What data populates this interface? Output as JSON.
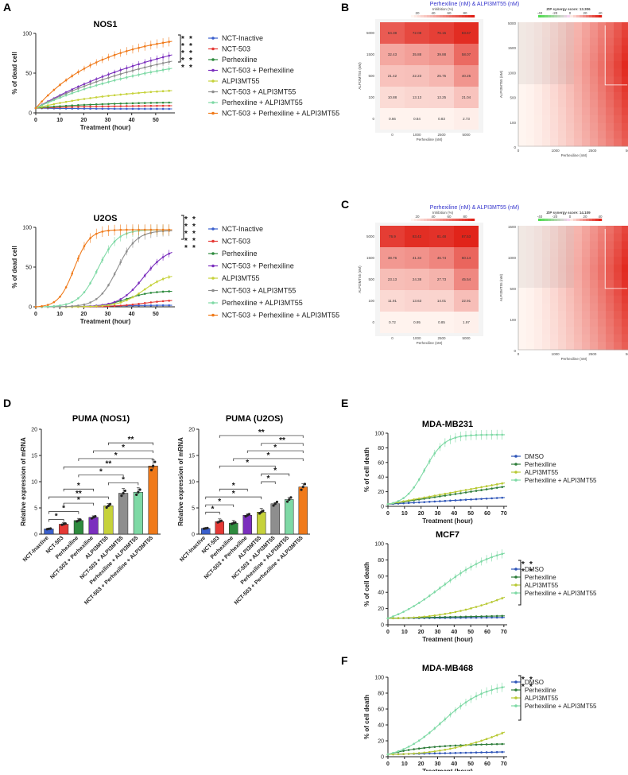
{
  "panels": {
    "A": "A",
    "B": "B",
    "C": "C",
    "D": "D",
    "E": "E",
    "F": "F"
  },
  "colors": {
    "nct_inactive": "#3a5fcd",
    "nct503": "#e53935",
    "perhexiline": "#2e8b3e",
    "nct_perh": "#7b2fbe",
    "alpi": "#c6d23b",
    "nct_alpi": "#8e8e8e",
    "perh_alpi": "#7ed9a5",
    "nct_perh_alpi": "#f07a1a",
    "dmso": "#2e55b8",
    "ef_perh": "#2e7d3a",
    "ef_alpi": "#b8c934",
    "ef_combo": "#7ed9a5"
  },
  "chart_data": [
    {
      "id": "A1",
      "type": "line",
      "title": "NOS1",
      "xlabel": "Treatment (hour)",
      "ylabel": "% of dead cell",
      "xlim": [
        0,
        58
      ],
      "ylim": [
        0,
        100
      ],
      "xticks": [
        "0",
        "10",
        "20",
        "30",
        "40",
        "50"
      ],
      "yticks": [
        "0",
        "50",
        "100"
      ],
      "significance": [
        "*",
        "*",
        "*",
        "*",
        "*",
        "*",
        "*",
        "*",
        "*",
        "*"
      ],
      "series": [
        {
          "name": "NCT-Inactive",
          "color": "nct_inactive",
          "start": 6,
          "end": 5,
          "tau": 20
        },
        {
          "name": "NCT-503",
          "color": "nct503",
          "start": 6,
          "end": 9,
          "tau": 30
        },
        {
          "name": "Perhexiline",
          "color": "perhexiline",
          "start": 6,
          "end": 13,
          "tau": 30
        },
        {
          "name": "NCT-503 + Perhexiline",
          "color": "nct_perh",
          "start": 6,
          "end": 73,
          "tau": 70
        },
        {
          "name": "ALPI3MT55",
          "color": "alpi",
          "start": 6,
          "end": 28,
          "tau": 40
        },
        {
          "name": "NCT-503 + ALPI3MT55",
          "color": "nct_alpi",
          "start": 6,
          "end": 65,
          "tau": 60
        },
        {
          "name": "Perhexiline + ALPI3MT55",
          "color": "perh_alpi",
          "start": 6,
          "end": 56,
          "tau": 55
        },
        {
          "name": "NCT-503 + Perhexiline + ALPI3MT55",
          "color": "nct_perh_alpi",
          "start": 6,
          "end": 90,
          "tau": 28
        }
      ]
    },
    {
      "id": "A2",
      "type": "line",
      "title": "U2OS",
      "xlabel": "Treatment (hour)",
      "ylabel": "% of dead cell",
      "xlim": [
        0,
        58
      ],
      "ylim": [
        0,
        100
      ],
      "xticks": [
        "0",
        "10",
        "20",
        "30",
        "40",
        "50"
      ],
      "yticks": [
        "0",
        "50",
        "100"
      ],
      "significance": [
        "*",
        "*",
        "*",
        "*",
        "*",
        "*",
        "*",
        "*",
        "*",
        "*"
      ],
      "series": [
        {
          "name": "NCT-Inactive",
          "color": "nct_inactive",
          "start": 0,
          "end": 2,
          "mid": 30,
          "k": 8
        },
        {
          "name": "NCT-503",
          "color": "nct503",
          "start": 0,
          "end": 9,
          "mid": 45,
          "k": 6
        },
        {
          "name": "Perhexiline",
          "color": "perhexiline",
          "start": 0,
          "end": 20,
          "mid": 38,
          "k": 5
        },
        {
          "name": "NCT-503 + Perhexiline",
          "color": "nct_perh",
          "start": 0,
          "end": 75,
          "mid": 45,
          "k": 5
        },
        {
          "name": "ALPI3MT55",
          "color": "alpi",
          "start": 0,
          "end": 42,
          "mid": 45,
          "k": 5
        },
        {
          "name": "NCT-503 + ALPI3MT55",
          "color": "nct_alpi",
          "start": 0,
          "end": 96,
          "mid": 34,
          "k": 4
        },
        {
          "name": "Perhexiline + ALPI3MT55",
          "color": "perh_alpi",
          "start": 0,
          "end": 97,
          "mid": 26,
          "k": 4
        },
        {
          "name": "NCT-503 + Perhexiline + ALPI3MT55",
          "color": "nct_perh_alpi",
          "start": 0,
          "end": 97,
          "mid": 16,
          "k": 3.2
        }
      ]
    },
    {
      "id": "B",
      "type": "heatmap",
      "subtitle": "Perhexiline (nM)  &  ALPI3MT55 (nM)",
      "legend_title": "Inhibition (%)",
      "legend_ticks": [
        "20",
        "40",
        "60",
        "80"
      ],
      "xlabel": "Perhexiline (nM)",
      "ylabel": "ALPI3MT55 (nM)",
      "xticks": [
        "0",
        "1000",
        "2500",
        "5000"
      ],
      "yticks": [
        "5000",
        "1500",
        "500",
        "100",
        "0"
      ],
      "values": [
        [
          "64.38",
          "72.08",
          "76.15",
          "83.67"
        ],
        [
          "32.43",
          "35.88",
          "39.88",
          "58.07"
        ],
        [
          "21.42",
          "22.23",
          "25.75",
          "40.25"
        ],
        [
          "10.88",
          "13.13",
          "13.25",
          "21.04"
        ],
        [
          "0.66",
          "0.84",
          "0.83",
          "2.73"
        ]
      ],
      "zip_title": "ZIP synergy score: 13.306",
      "zip_ticks": [
        "-40",
        "-20",
        "0",
        "20",
        "40"
      ],
      "zip_xticks": [
        "0",
        "1000",
        "2500",
        "5000"
      ],
      "zip_yticks": [
        "5000",
        "1500",
        "1000",
        "500",
        "100",
        "0"
      ],
      "zip_xlabel": "Perhexiline (nM)",
      "zip_ylabel": "ALPI3MT55 (nM)"
    },
    {
      "id": "C",
      "type": "heatmap",
      "subtitle": "Perhexiline (nM)  &  ALPI3MT55 (nM)",
      "legend_title": "Inhibition (%)",
      "legend_ticks": [
        "20",
        "40",
        "60",
        "80"
      ],
      "xlabel": "Perhexiline (nM)",
      "ylabel": "ALPI3MT55 (nM)",
      "xticks": [
        "0",
        "1000",
        "2500",
        "5000"
      ],
      "yticks": [
        "5000",
        "1500",
        "500",
        "100",
        "0"
      ],
      "values": [
        [
          "76.9",
          "83.42",
          "81.48",
          "87.53"
        ],
        [
          "38.76",
          "41.34",
          "46.74",
          "60.14"
        ],
        [
          "23.13",
          "24.38",
          "27.73",
          "45.54"
        ],
        [
          "11.91",
          "13.63",
          "14.01",
          "22.91"
        ],
        [
          "0.72",
          "0.95",
          "0.85",
          "1.97"
        ]
      ],
      "zip_title": "ZIP synergy score: 14.109",
      "zip_ticks": [
        "-40",
        "-20",
        "0",
        "20",
        "40"
      ],
      "zip_xticks": [
        "0",
        "1000",
        "2500",
        "5000"
      ],
      "zip_yticks": [
        "1500",
        "1000",
        "500",
        "100",
        "0"
      ],
      "zip_xlabel": "Perhexiline (nM)",
      "zip_ylabel": "ALPI3MT55 (nM)"
    },
    {
      "id": "D1",
      "type": "bar",
      "title": "PUMA (NOS1)",
      "ylabel": "Relative expression of mRNA",
      "ylim": [
        0,
        20
      ],
      "yticks": [
        "0",
        "5",
        "10",
        "15",
        "20"
      ],
      "categories": [
        "NCT-Inactive",
        "NCT-503",
        "Perhexiline",
        "NCT-503 + Perhexiline",
        "ALPI3MT55",
        "NCT-503 + ALPI3MT55",
        "Perhexiline + ALPI3MT55",
        "NCT-503 + Perhexiline + ALPI3MT55"
      ],
      "colors": [
        "nct_inactive",
        "nct503",
        "perhexiline",
        "nct_perh",
        "alpi",
        "nct_alpi",
        "perh_alpi",
        "nct_perh_alpi"
      ],
      "values": [
        1.0,
        1.9,
        2.6,
        3.2,
        5.4,
        7.8,
        8.0,
        13.0
      ],
      "errors": [
        0.15,
        0.3,
        0.4,
        0.3,
        0.4,
        0.9,
        0.9,
        1.2
      ],
      "brackets": [
        {
          "a": 0,
          "b": 1,
          "y": 2.8,
          "label": "*"
        },
        {
          "a": 0,
          "b": 2,
          "y": 4.3,
          "label": "*"
        },
        {
          "a": 1,
          "b": 3,
          "y": 5.9,
          "label": "*"
        },
        {
          "a": 0,
          "b": 4,
          "y": 7.1,
          "label": "**"
        },
        {
          "a": 1,
          "b": 3,
          "y": 8.6,
          "label": "*"
        },
        {
          "a": 4,
          "b": 6,
          "y": 9.8,
          "label": "*"
        },
        {
          "a": 2,
          "b": 5,
          "y": 11.3,
          "label": "*"
        },
        {
          "a": 1,
          "b": 7,
          "y": 12.8,
          "label": "**"
        },
        {
          "a": 2,
          "b": 7,
          "y": 14.4,
          "label": "*"
        },
        {
          "a": 3,
          "b": 7,
          "y": 15.9,
          "label": "*"
        },
        {
          "a": 4,
          "b": 7,
          "y": 17.4,
          "label": "**"
        }
      ]
    },
    {
      "id": "D2",
      "type": "bar",
      "title": "PUMA (U2OS)",
      "ylabel": "Relative expression of mRNA",
      "ylim": [
        0,
        20
      ],
      "yticks": [
        "0",
        "5",
        "10",
        "15",
        "20"
      ],
      "categories": [
        "NCT-Inactive",
        "NCT-503",
        "Perhexiline",
        "NCT-503 + Perhexiline",
        "ALPI3MT55",
        "NCT-503 + ALPI3MT55",
        "Perhexiline + ALPI3MT55",
        "NCT-503 + Perhexiline + ALPI3MT55"
      ],
      "colors": [
        "nct_inactive",
        "nct503",
        "perhexiline",
        "nct_perh",
        "alpi",
        "nct_alpi",
        "perh_alpi",
        "nct_perh_alpi"
      ],
      "values": [
        1.1,
        2.4,
        2.1,
        3.6,
        4.2,
        5.8,
        6.6,
        9.0
      ],
      "errors": [
        0.15,
        0.5,
        0.5,
        0.3,
        0.7,
        0.2,
        0.4,
        0.6
      ],
      "brackets": [
        {
          "a": 0,
          "b": 1,
          "y": 4.2,
          "label": "*"
        },
        {
          "a": 0,
          "b": 2,
          "y": 5.6,
          "label": "*"
        },
        {
          "a": 0,
          "b": 4,
          "y": 7.1,
          "label": "*"
        },
        {
          "a": 1,
          "b": 3,
          "y": 8.6,
          "label": "*"
        },
        {
          "a": 4,
          "b": 5,
          "y": 10.0,
          "label": "*"
        },
        {
          "a": 4,
          "b": 6,
          "y": 11.5,
          "label": "*"
        },
        {
          "a": 1,
          "b": 5,
          "y": 13.0,
          "label": "*"
        },
        {
          "a": 2,
          "b": 7,
          "y": 14.4,
          "label": "*"
        },
        {
          "a": 3,
          "b": 7,
          "y": 15.9,
          "label": "*"
        },
        {
          "a": 4,
          "b": 7,
          "y": 17.3,
          "label": "**"
        },
        {
          "a": 1,
          "b": 7,
          "y": 18.8,
          "label": "**"
        }
      ]
    },
    {
      "id": "E1",
      "type": "line",
      "title": "MDA-MB231",
      "xlabel": "Treatment (hour)",
      "ylabel": "% of cell death",
      "xlim": [
        0,
        72
      ],
      "ylim": [
        0,
        100
      ],
      "xticks": [
        "0",
        "10",
        "20",
        "30",
        "40",
        "50",
        "60",
        "70"
      ],
      "yticks": [
        "0",
        "20",
        "40",
        "60",
        "80",
        "100"
      ],
      "series": [
        {
          "name": "DMSO",
          "color": "dmso",
          "shape": "lin",
          "start": 3,
          "end": 12
        },
        {
          "name": "Perhexiline",
          "color": "ef_perh",
          "shape": "lin",
          "start": 3,
          "end": 27
        },
        {
          "name": "ALPI3MT55",
          "color": "ef_alpi",
          "shape": "lin",
          "start": 3,
          "end": 32
        },
        {
          "name": "Perhexiline + ALPI3MT55",
          "color": "ef_combo",
          "shape": "sig",
          "start": 3,
          "end": 98,
          "mid": 22,
          "k": 6
        }
      ]
    },
    {
      "id": "E2",
      "type": "line",
      "title": "MCF7",
      "xlabel": "Treatment (hour)",
      "ylabel": "% of cell death",
      "xlim": [
        0,
        72
      ],
      "ylim": [
        0,
        100
      ],
      "xticks": [
        "0",
        "10",
        "20",
        "30",
        "40",
        "50",
        "60",
        "70"
      ],
      "yticks": [
        "0",
        "20",
        "40",
        "60",
        "80",
        "100"
      ],
      "significance": [
        "*",
        "*",
        "*",
        "*"
      ],
      "series": [
        {
          "name": "DMSO",
          "color": "dmso",
          "shape": "lin",
          "start": 8,
          "end": 9
        },
        {
          "name": "Perhexiline",
          "color": "ef_perh",
          "shape": "lin",
          "start": 8,
          "end": 11
        },
        {
          "name": "ALPI3MT55",
          "color": "ef_alpi",
          "shape": "pow",
          "start": 8,
          "end": 34
        },
        {
          "name": "Perhexiline + ALPI3MT55",
          "color": "ef_combo",
          "shape": "sig",
          "start": 8,
          "end": 98,
          "mid": 32,
          "k": 17
        }
      ]
    },
    {
      "id": "F",
      "type": "line",
      "title": "MDA-MB468",
      "xlabel": "Treatment (hour)",
      "ylabel": "% of cell death",
      "xlim": [
        0,
        72
      ],
      "ylim": [
        0,
        100
      ],
      "xticks": [
        "0",
        "10",
        "20",
        "30",
        "40",
        "50",
        "60",
        "70"
      ],
      "yticks": [
        "0",
        "20",
        "40",
        "60",
        "80",
        "100"
      ],
      "significance": [
        "*",
        "*",
        "*",
        "*"
      ],
      "series": [
        {
          "name": "DMSO",
          "color": "dmso",
          "shape": "lin",
          "start": 3,
          "end": 6
        },
        {
          "name": "Perhexiline",
          "color": "ef_perh",
          "shape": "sat",
          "start": 3,
          "end": 16
        },
        {
          "name": "ALPI3MT55",
          "color": "ef_alpi",
          "shape": "pow",
          "start": 3,
          "end": 31
        },
        {
          "name": "Perhexiline + ALPI3MT55",
          "color": "ef_combo",
          "shape": "sig",
          "start": 3,
          "end": 93,
          "mid": 33,
          "k": 13
        }
      ]
    }
  ]
}
